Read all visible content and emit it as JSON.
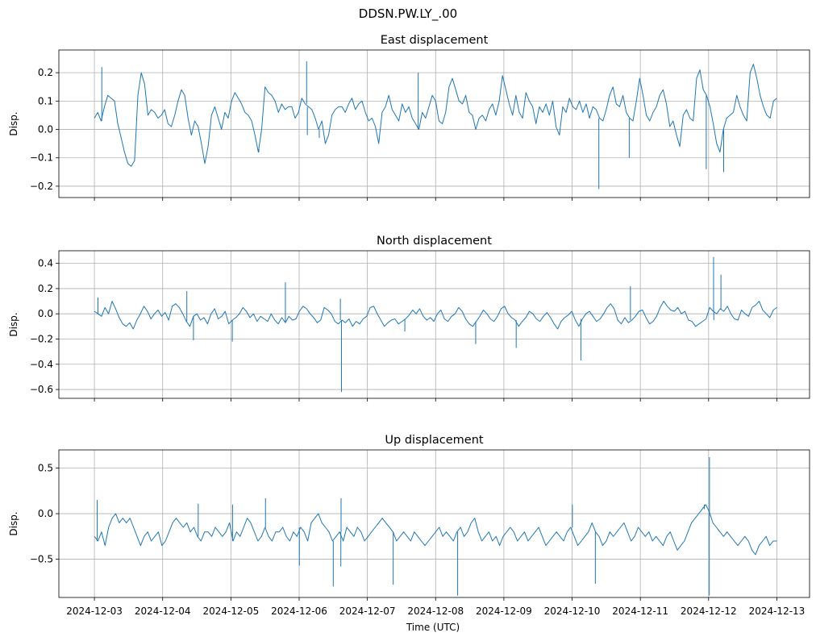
{
  "chart_data": {
    "type": "line",
    "suptitle": "DDSN.PW.LY_.00",
    "xlabel": "Time (UTC)",
    "x_tick_labels": [
      "2024-12-03",
      "2024-12-04",
      "2024-12-05",
      "2024-12-06",
      "2024-12-07",
      "2024-12-08",
      "2024-12-09",
      "2024-12-10",
      "2024-12-11",
      "2024-12-12",
      "2024-12-13"
    ],
    "x_range": [
      "2024-12-02T11:30:00",
      "2024-12-13T11:30:00"
    ],
    "grid": true,
    "line_color": "#1f77b4",
    "panels": [
      {
        "title": "East displacement",
        "ylabel": "Disp.",
        "ylim": [
          -0.24,
          0.28
        ],
        "yticks": [
          -0.2,
          -0.1,
          0.0,
          0.1,
          0.2
        ],
        "ytick_labels": [
          "−0.2",
          "−0.1",
          "0.0",
          "0.1",
          "0.2"
        ],
        "series": {
          "x_start": "2024-12-03T00:00:00",
          "x_end": "2024-12-13T00:00:00",
          "values": [
            0.04,
            0.06,
            0.03,
            0.08,
            0.12,
            0.11,
            0.1,
            0.02,
            -0.03,
            -0.08,
            -0.12,
            -0.13,
            -0.11,
            0.12,
            0.2,
            0.16,
            0.05,
            0.07,
            0.06,
            0.04,
            0.05,
            0.07,
            0.02,
            0.01,
            0.05,
            0.1,
            0.14,
            0.12,
            0.04,
            -0.02,
            0.03,
            0.01,
            -0.05,
            -0.12,
            -0.06,
            0.05,
            0.08,
            0.04,
            0.0,
            0.06,
            0.04,
            0.1,
            0.13,
            0.11,
            0.09,
            0.06,
            0.05,
            0.03,
            -0.02,
            -0.08,
            0.0,
            0.15,
            0.13,
            0.12,
            0.1,
            0.06,
            0.09,
            0.07,
            0.08,
            0.08,
            0.04,
            0.06,
            0.11,
            0.09,
            0.08,
            0.07,
            0.04,
            0.0,
            0.03,
            -0.05,
            -0.02,
            0.05,
            0.07,
            0.08,
            0.08,
            0.06,
            0.09,
            0.11,
            0.07,
            0.09,
            0.1,
            0.06,
            0.03,
            0.04,
            0.01,
            -0.05,
            0.06,
            0.08,
            0.12,
            0.07,
            0.05,
            0.03,
            0.09,
            0.06,
            0.08,
            0.04,
            0.02,
            0.0,
            0.06,
            0.04,
            0.08,
            0.12,
            0.1,
            0.03,
            0.02,
            0.06,
            0.15,
            0.18,
            0.14,
            0.1,
            0.09,
            0.12,
            0.06,
            0.05,
            0.0,
            0.04,
            0.05,
            0.03,
            0.07,
            0.09,
            0.05,
            0.1,
            0.19,
            0.14,
            0.09,
            0.05,
            0.12,
            0.06,
            0.04,
            0.13,
            0.1,
            0.08,
            0.02,
            0.08,
            0.06,
            0.09,
            0.05,
            0.1,
            0.01,
            -0.02,
            0.08,
            0.06,
            0.11,
            0.08,
            0.07,
            0.1,
            0.06,
            0.09,
            0.04,
            0.08,
            0.07,
            0.04,
            0.03,
            0.07,
            0.12,
            0.15,
            0.09,
            0.08,
            0.12,
            0.06,
            0.04,
            0.03,
            0.1,
            0.18,
            0.12,
            0.05,
            0.03,
            0.06,
            0.08,
            0.12,
            0.14,
            0.09,
            0.01,
            0.03,
            -0.02,
            -0.06,
            0.05,
            0.07,
            0.04,
            0.03,
            0.18,
            0.21,
            0.14,
            0.12,
            0.08,
            0.02,
            -0.05,
            -0.08,
            0.0,
            0.04,
            0.05,
            0.06,
            0.12,
            0.08,
            0.05,
            0.03,
            0.2,
            0.23,
            0.18,
            0.12,
            0.08,
            0.05,
            0.04,
            0.1,
            0.11
          ]
        },
        "spikes": [
          [
            "2024-12-03T02:36:00",
            0.22
          ],
          [
            "2024-12-05T09:50:00",
            -0.07
          ],
          [
            "2024-12-06T02:38:00",
            0.24
          ],
          [
            "2024-12-06T02:53:00",
            -0.02
          ],
          [
            "2024-12-06T07:05:00",
            -0.03
          ],
          [
            "2024-12-07T17:52:00",
            0.2
          ],
          [
            "2024-12-10T09:24:00",
            -0.21
          ],
          [
            "2024-12-10T20:05:00",
            -0.1
          ],
          [
            "2024-12-11T23:10:00",
            -0.14
          ],
          [
            "2024-12-12T05:18:00",
            -0.15
          ]
        ]
      },
      {
        "title": "North displacement",
        "ylabel": "Disp.",
        "ylim": [
          -0.67,
          0.5
        ],
        "yticks": [
          -0.6,
          -0.4,
          -0.2,
          0.0,
          0.2,
          0.4
        ],
        "ytick_labels": [
          "−0.6",
          "−0.4",
          "−0.2",
          "0.0",
          "0.2",
          "0.4"
        ],
        "series": {
          "x_start": "2024-12-03T00:00:00",
          "x_end": "2024-12-13T00:00:00",
          "values": [
            0.02,
            0.0,
            -0.02,
            0.05,
            0.0,
            0.1,
            0.04,
            -0.03,
            -0.08,
            -0.1,
            -0.07,
            -0.12,
            -0.05,
            0.0,
            0.06,
            0.02,
            -0.04,
            0.0,
            0.03,
            -0.02,
            0.01,
            -0.05,
            0.06,
            0.08,
            0.05,
            0.0,
            -0.06,
            -0.1,
            -0.02,
            0.0,
            -0.05,
            -0.03,
            -0.08,
            0.0,
            0.04,
            -0.04,
            -0.02,
            0.02,
            -0.08,
            -0.05,
            -0.03,
            0.0,
            0.05,
            0.02,
            -0.03,
            0.0,
            -0.06,
            -0.02,
            -0.04,
            -0.06,
            0.0,
            -0.05,
            -0.08,
            -0.03,
            -0.07,
            -0.02,
            -0.05,
            -0.04,
            0.02,
            0.06,
            0.04,
            0.0,
            -0.03,
            -0.07,
            -0.05,
            0.05,
            0.03,
            0.0,
            -0.06,
            -0.08,
            -0.05,
            -0.07,
            -0.04,
            -0.1,
            -0.06,
            -0.08,
            -0.04,
            -0.02,
            0.05,
            0.06,
            0.0,
            -0.05,
            -0.1,
            -0.07,
            -0.05,
            -0.04,
            -0.08,
            -0.06,
            -0.04,
            -0.01,
            0.03,
            0.0,
            0.04,
            -0.02,
            -0.05,
            -0.03,
            -0.06,
            0.0,
            0.03,
            -0.04,
            -0.06,
            -0.02,
            0.0,
            0.05,
            0.02,
            -0.04,
            -0.08,
            -0.1,
            -0.06,
            -0.02,
            0.03,
            0.0,
            -0.04,
            -0.06,
            -0.02,
            0.04,
            0.06,
            0.0,
            -0.03,
            -0.05,
            -0.1,
            -0.06,
            -0.03,
            0.02,
            0.0,
            -0.04,
            -0.06,
            -0.02,
            0.01,
            -0.03,
            -0.08,
            -0.12,
            -0.06,
            -0.03,
            -0.01,
            0.02,
            -0.05,
            -0.1,
            -0.04,
            0.0,
            0.02,
            -0.02,
            -0.06,
            -0.04,
            0.0,
            0.05,
            0.08,
            0.04,
            -0.05,
            -0.08,
            -0.03,
            -0.07,
            -0.05,
            -0.02,
            0.02,
            0.03,
            -0.03,
            -0.08,
            -0.06,
            -0.02,
            0.05,
            0.1,
            0.06,
            0.03,
            0.02,
            0.05,
            0.0,
            0.02,
            -0.05,
            -0.06,
            -0.1,
            -0.08,
            -0.06,
            -0.04,
            0.05,
            0.02,
            0.0,
            0.04,
            0.02,
            0.06,
            0.0,
            -0.04,
            -0.05,
            0.03,
            0.0,
            -0.02,
            0.05,
            0.07,
            0.1,
            0.03,
            0.0,
            -0.03,
            0.03,
            0.05
          ]
        },
        "spikes": [
          [
            "2024-12-03T01:15:00",
            0.13
          ],
          [
            "2024-12-04T08:30:00",
            0.18
          ],
          [
            "2024-12-04T10:50:00",
            -0.21
          ],
          [
            "2024-12-05T00:30:00",
            -0.22
          ],
          [
            "2024-12-05T19:10:00",
            0.25
          ],
          [
            "2024-12-06T14:30:00",
            0.12
          ],
          [
            "2024-12-06T14:53:00",
            -0.62
          ],
          [
            "2024-12-07T13:10:00",
            -0.14
          ],
          [
            "2024-12-08T14:05:00",
            -0.24
          ],
          [
            "2024-12-09T04:20:00",
            -0.27
          ],
          [
            "2024-12-10T03:05:00",
            -0.37
          ],
          [
            "2024-12-10T20:30:00",
            0.22
          ],
          [
            "2024-12-12T01:45:00",
            0.45
          ],
          [
            "2024-12-12T01:50:00",
            -0.05
          ],
          [
            "2024-12-12T04:20:00",
            0.31
          ]
        ]
      },
      {
        "title": "Up displacement",
        "ylabel": "Disp.",
        "ylim": [
          -0.92,
          0.7
        ],
        "yticks": [
          -0.5,
          0.0,
          0.5
        ],
        "ytick_labels": [
          "−0.5",
          "0.0",
          "0.5"
        ],
        "series": {
          "x_start": "2024-12-03T00:00:00",
          "x_end": "2024-12-13T00:00:00",
          "values": [
            -0.25,
            -0.3,
            -0.2,
            -0.35,
            -0.15,
            -0.05,
            0.0,
            -0.1,
            -0.05,
            -0.1,
            -0.05,
            -0.15,
            -0.25,
            -0.35,
            -0.25,
            -0.2,
            -0.3,
            -0.25,
            -0.2,
            -0.35,
            -0.3,
            -0.2,
            -0.1,
            -0.05,
            -0.1,
            -0.15,
            -0.1,
            -0.2,
            -0.15,
            -0.25,
            -0.3,
            -0.2,
            -0.2,
            -0.25,
            -0.15,
            -0.2,
            -0.25,
            -0.2,
            -0.1,
            -0.3,
            -0.2,
            -0.25,
            -0.15,
            -0.05,
            -0.1,
            -0.2,
            -0.3,
            -0.25,
            -0.15,
            -0.25,
            -0.3,
            -0.2,
            -0.2,
            -0.15,
            -0.25,
            -0.3,
            -0.2,
            -0.25,
            -0.15,
            -0.2,
            -0.3,
            -0.1,
            -0.05,
            0.0,
            -0.1,
            -0.15,
            -0.2,
            -0.3,
            -0.25,
            -0.2,
            -0.3,
            -0.15,
            -0.2,
            -0.25,
            -0.15,
            -0.2,
            -0.3,
            -0.25,
            -0.2,
            -0.15,
            -0.1,
            -0.05,
            -0.1,
            -0.15,
            -0.2,
            -0.3,
            -0.25,
            -0.2,
            -0.25,
            -0.3,
            -0.2,
            -0.25,
            -0.3,
            -0.35,
            -0.3,
            -0.25,
            -0.2,
            -0.15,
            -0.25,
            -0.2,
            -0.25,
            -0.3,
            -0.2,
            -0.15,
            -0.25,
            -0.2,
            -0.1,
            -0.05,
            -0.2,
            -0.3,
            -0.25,
            -0.2,
            -0.3,
            -0.25,
            -0.35,
            -0.25,
            -0.2,
            -0.15,
            -0.2,
            -0.3,
            -0.25,
            -0.2,
            -0.3,
            -0.25,
            -0.2,
            -0.15,
            -0.25,
            -0.35,
            -0.3,
            -0.25,
            -0.2,
            -0.25,
            -0.3,
            -0.2,
            -0.15,
            -0.25,
            -0.35,
            -0.3,
            -0.25,
            -0.2,
            -0.1,
            -0.2,
            -0.25,
            -0.35,
            -0.3,
            -0.2,
            -0.25,
            -0.2,
            -0.15,
            -0.1,
            -0.2,
            -0.3,
            -0.25,
            -0.15,
            -0.2,
            -0.25,
            -0.2,
            -0.3,
            -0.25,
            -0.3,
            -0.35,
            -0.25,
            -0.2,
            -0.3,
            -0.4,
            -0.35,
            -0.3,
            -0.2,
            -0.1,
            -0.05,
            0.0,
            0.05,
            0.1,
            0.02,
            -0.1,
            -0.15,
            -0.2,
            -0.25,
            -0.2,
            -0.25,
            -0.3,
            -0.35,
            -0.3,
            -0.25,
            -0.3,
            -0.4,
            -0.45,
            -0.35,
            -0.3,
            -0.25,
            -0.35,
            -0.3,
            -0.3
          ]
        },
        "spikes": [
          [
            "2024-12-03T00:58:00",
            0.15
          ],
          [
            "2024-12-04T12:30:00",
            0.11
          ],
          [
            "2024-12-05T00:35:00",
            0.1
          ],
          [
            "2024-12-05T12:10:00",
            0.17
          ],
          [
            "2024-12-06T00:05:00",
            -0.57
          ],
          [
            "2024-12-06T12:00:00",
            -0.8
          ],
          [
            "2024-12-06T14:40:00",
            -0.58
          ],
          [
            "2024-12-06T14:45:00",
            0.17
          ],
          [
            "2024-12-07T09:05:00",
            -0.78
          ],
          [
            "2024-12-08T07:45:00",
            -0.9
          ],
          [
            "2024-12-10T00:05:00",
            0.1
          ],
          [
            "2024-12-10T08:10:00",
            -0.77
          ],
          [
            "2024-12-11T22:30:00",
            0.05
          ],
          [
            "2024-12-12T00:15:00",
            -0.9
          ],
          [
            "2024-12-12T00:18:00",
            0.62
          ]
        ]
      }
    ]
  }
}
